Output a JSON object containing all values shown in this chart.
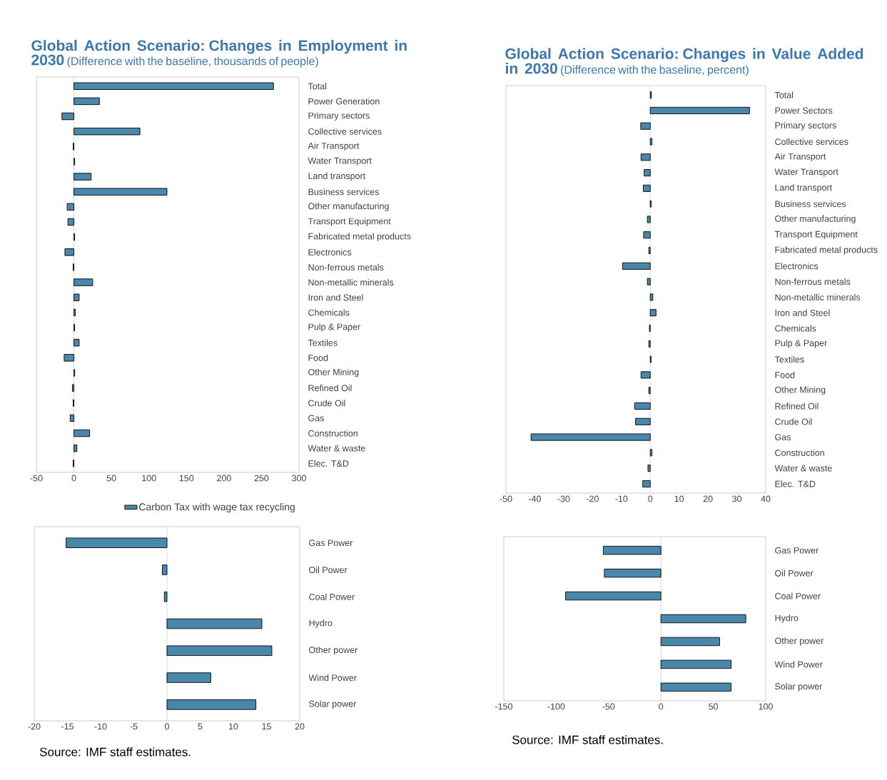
{
  "chart_data": [
    {
      "type": "bar",
      "orientation": "horizontal",
      "title": "Global Action Scenario: Changes in Employment in 2030",
      "subtitle": "(Difference with the baseline, thousands of people)",
      "categories": [
        "Total",
        "Power Generation",
        "Primary sectors",
        "Collective services",
        "Air Transport",
        "Water Transport",
        "Land transport",
        "Business services",
        "Other manufacturing",
        "Transport Equipment",
        "Fabricated metal products",
        "Electronics",
        "Non-ferrous metals",
        "Non-metallic minerals",
        "Iron and Steel",
        "Chemicals",
        "Pulp & Paper",
        "Textiles",
        "Food",
        "Other Mining",
        "Refined Oil",
        "Crude Oil",
        "Gas",
        "Construction",
        "Water & waste",
        "Elec. T&D"
      ],
      "series": [
        {
          "name": "Carbon Tax with wage tax recycling",
          "color": "#4a88ab",
          "values": [
            266,
            34,
            -16,
            88,
            -1,
            1,
            23,
            124,
            -9,
            -8,
            1,
            -12,
            -1,
            25,
            7,
            2,
            1,
            7,
            -13,
            1,
            -2,
            -1,
            -5,
            21,
            4,
            -1
          ]
        }
      ],
      "xlim": [
        -50,
        300
      ],
      "xticks": [
        -50,
        0,
        50,
        100,
        150,
        200,
        250,
        300
      ],
      "legend": "bottom right"
    },
    {
      "type": "bar",
      "orientation": "horizontal",
      "title": "Global Action Scenario: Changes in Value Added in 2030",
      "subtitle": "(Difference with the baseline, percent)",
      "categories": [
        "Total",
        "Power Sectors",
        "Primary sectors",
        "Collective services",
        "Air Transport",
        "Water Transport",
        "Land transport",
        "Business services",
        "Other manufacturing",
        "Transport Equipment",
        "Fabricated metal products",
        "Electronics",
        "Non-ferrous metals",
        "Non-metallic minerals",
        "Iron and Steel",
        "Chemicals",
        "Pulp & Paper",
        "Textiles",
        "Food",
        "Other Mining",
        "Refined Oil",
        "Crude Oil",
        "Gas",
        "Construction",
        "Water & waste",
        "Elec. T&D"
      ],
      "series": [
        {
          "color": "#4a88ab",
          "values": [
            0.4,
            34.4,
            -3.3,
            0.6,
            -3.2,
            -2.1,
            -2.4,
            0.3,
            -1.0,
            -2.3,
            -0.5,
            -9.6,
            -1.0,
            0.9,
            2.0,
            -0.3,
            -0.5,
            0.3,
            -3.2,
            -0.5,
            -5.4,
            -5.1,
            -41.3,
            0.6,
            -0.8,
            -2.6
          ]
        }
      ],
      "xlim": [
        -50,
        40
      ],
      "xticks": [
        -50,
        -40,
        -30,
        -20,
        -10,
        0,
        10,
        20,
        30,
        40
      ]
    },
    {
      "type": "bar",
      "orientation": "horizontal",
      "annotations": [
        "Source: IMF staff estimates."
      ],
      "categories": [
        "Gas Power",
        "Oil Power",
        "Coal Power",
        "Hydro",
        "Other power",
        "Wind Power",
        "Solar power"
      ],
      "series": [
        {
          "color": "#4a88ab",
          "values": [
            -15.2,
            -0.7,
            -0.4,
            14.3,
            15.8,
            6.6,
            13.4
          ]
        }
      ],
      "xlim": [
        -20,
        20
      ],
      "xticks": [
        -20,
        -15,
        -10,
        -5,
        0,
        5,
        10,
        15,
        20
      ]
    },
    {
      "type": "bar",
      "orientation": "horizontal",
      "annotations": [
        "Source: IMF staff estimates."
      ],
      "categories": [
        "Gas Power",
        "Oil Power",
        "Coal Power",
        "Hydro",
        "Other power",
        "Wind Power",
        "Solar power"
      ],
      "series": [
        {
          "color": "#4a88ab",
          "values": [
            -55,
            -54,
            -91,
            81,
            56,
            67,
            67
          ]
        }
      ],
      "xlim": [
        -150,
        100
      ],
      "xticks": [
        -150,
        -100,
        -50,
        0,
        50,
        100
      ]
    }
  ]
}
